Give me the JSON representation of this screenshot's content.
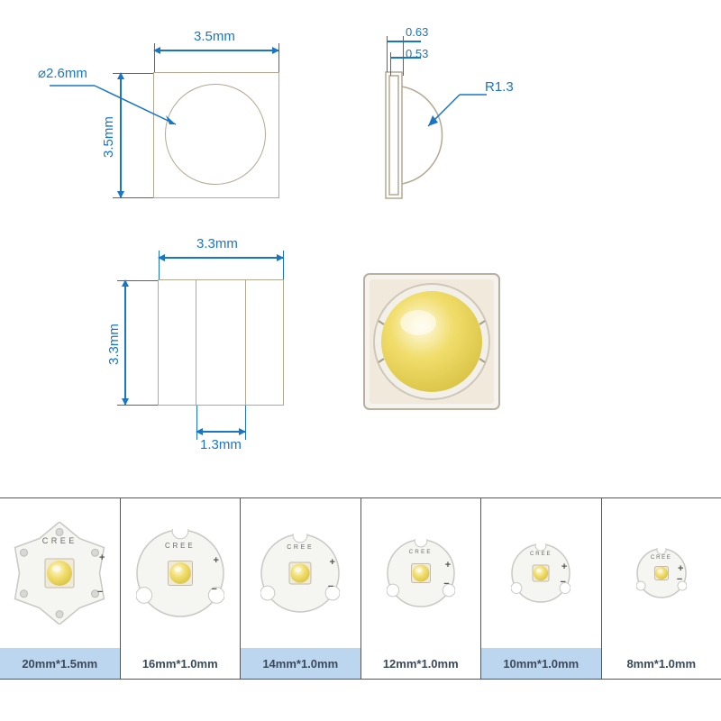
{
  "colors": {
    "dimension": "#1976c5",
    "outline": "#b5a892",
    "led_yellow": "#f1dd6b",
    "led_highlight": "#fefbe8",
    "led_shadow": "#d9c445",
    "pcb_body": "#f5f5f2",
    "pcb_edge": "#c8c8c4",
    "strip_label_bg": "#bcd6f0",
    "strip_label_text": "#3a4a5a",
    "border_dark": "#555555"
  },
  "dimensions": {
    "top_width": "3.5mm",
    "top_height": "3.5mm",
    "lens_diameter": "⌀2.6mm",
    "profile_outer": "0.63",
    "profile_inner": "0.53",
    "lens_radius": "R1.3",
    "pad_width": "3.3mm",
    "pad_height": "3.3mm",
    "pad_gap": "1.3mm"
  },
  "brand": "CREE",
  "sizes": [
    {
      "label": "20mm*1.5mm",
      "diameter": 114,
      "shape": "star6"
    },
    {
      "label": "16mm*1.0mm",
      "diameter": 98,
      "shape": "round3"
    },
    {
      "label": "14mm*1.0mm",
      "diameter": 88,
      "shape": "round3"
    },
    {
      "label": "12mm*1.0mm",
      "diameter": 76,
      "shape": "round3"
    },
    {
      "label": "10mm*1.0mm",
      "diameter": 66,
      "shape": "round3"
    },
    {
      "label": "8mm*1.0mm",
      "diameter": 56,
      "shape": "round3"
    }
  ],
  "typography": {
    "dim_font_size": 15,
    "label_font_size": 13,
    "brand_font_size": 9
  }
}
